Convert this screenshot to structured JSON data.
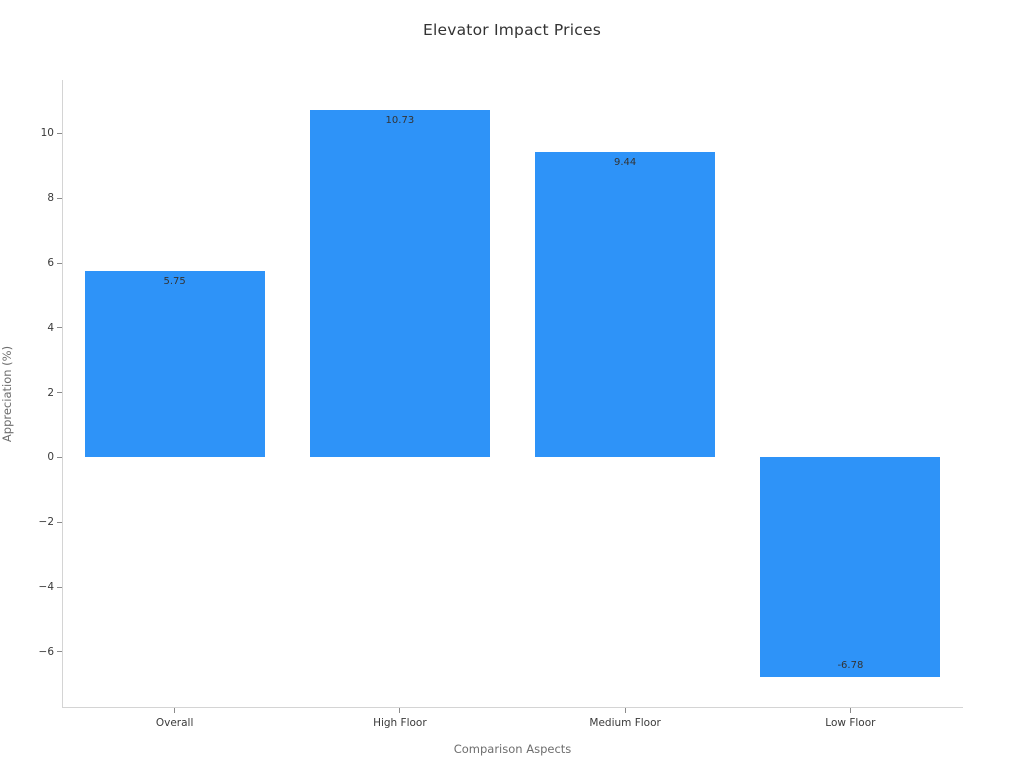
{
  "chart_data": {
    "type": "bar",
    "title": "Elevator Impact Prices",
    "xlabel": "Comparison Aspects",
    "ylabel": "Appreciation (%)",
    "categories": [
      "Overall",
      "High Floor",
      "Medium Floor",
      "Low Floor"
    ],
    "values": [
      5.75,
      10.73,
      9.44,
      -6.78
    ],
    "value_labels": [
      "5.75",
      "10.73",
      "9.44",
      "-6.78"
    ],
    "yticks": [
      -6,
      -4,
      -2,
      0,
      2,
      4,
      6,
      8,
      10
    ],
    "ylim": [
      -7.7,
      11.65
    ],
    "xlim": [
      -0.5,
      3.5
    ],
    "bar_width_fraction": 0.8,
    "grid": false,
    "legend_position": "none",
    "bar_color": "#2e93f8",
    "value_label_color": "#333333",
    "tick_label_color": "#3a3a3a",
    "axis_label_color": "#6e6e6e",
    "spine_color": "#d4d4d4",
    "background_color": "#ffffff"
  }
}
